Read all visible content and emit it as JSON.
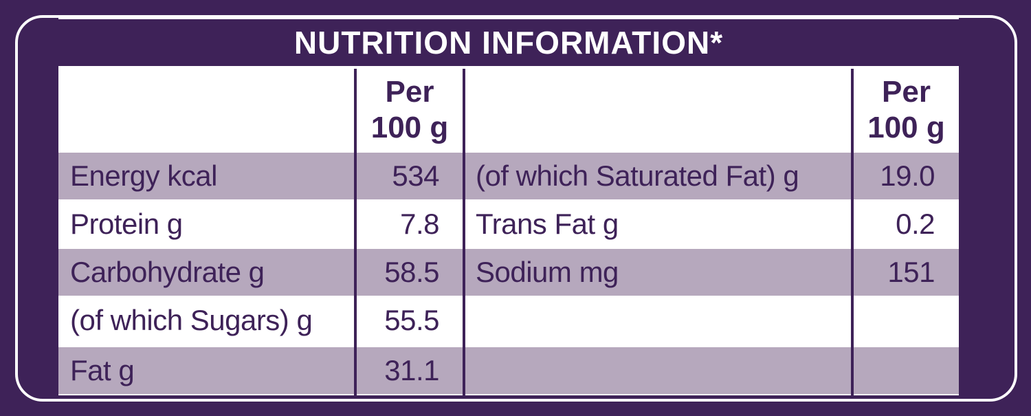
{
  "header": {
    "title": "NUTRITION INFORMATION*"
  },
  "table": {
    "headers": [
      "Per 100 g",
      "Per 100 g"
    ],
    "left_rows": [
      [
        "Energy kcal",
        "534"
      ],
      [
        "Protein g",
        "7.8"
      ],
      [
        "Carbohydrate g",
        "58.5"
      ],
      [
        "(of which Sugars) g",
        "55.5"
      ],
      [
        "Fat g",
        "31.1"
      ]
    ],
    "right_rows": [
      [
        "(of which Saturated Fat) g",
        "19.0"
      ],
      [
        "Trans Fat g",
        "0.2"
      ],
      [
        "Sodium mg",
        "151"
      ]
    ]
  }
}
